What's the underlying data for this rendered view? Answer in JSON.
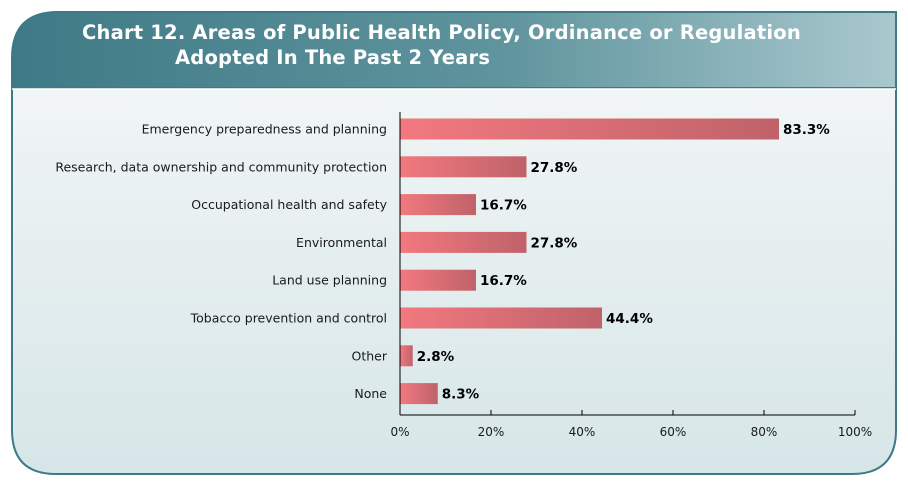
{
  "header": {
    "title_line1": "Chart 12. Areas of Public Health Policy, Ordinance or Regulation",
    "title_line2": "Adopted In The Past 2 Years"
  },
  "colors": {
    "panel_dark": "#3e7a86",
    "panel_light": "#a9c8ce",
    "body_bg_top": "#f1f5f5",
    "body_bg_bottom": "#d6e6e8",
    "bar_start": "#f2797f",
    "bar_end": "#c0626a"
  },
  "chart_data": {
    "type": "bar",
    "orientation": "horizontal",
    "title": "Chart 12. Areas of Public Health Policy, Ordinance or Regulation Adopted In The Past 2 Years",
    "categories": [
      "Emergency preparedness and planning",
      "Research, data ownership and community protection",
      "Occupational health and safety",
      "Environmental",
      "Land use planning",
      "Tobacco prevention and control",
      "Other",
      "None"
    ],
    "values": [
      83.3,
      27.8,
      16.7,
      27.8,
      16.7,
      44.4,
      2.8,
      8.3
    ],
    "value_labels": [
      "83.3%",
      "27.8%",
      "16.7%",
      "27.8%",
      "16.7%",
      "44.4%",
      "2.8%",
      "8.3%"
    ],
    "xlim": [
      0,
      100
    ],
    "xticks": [
      0,
      20,
      40,
      60,
      80,
      100
    ],
    "xtick_labels": [
      "0%",
      "20%",
      "40%",
      "60%",
      "80%",
      "100%"
    ],
    "xlabel": "",
    "ylabel": "",
    "grid": false,
    "legend": "none"
  }
}
